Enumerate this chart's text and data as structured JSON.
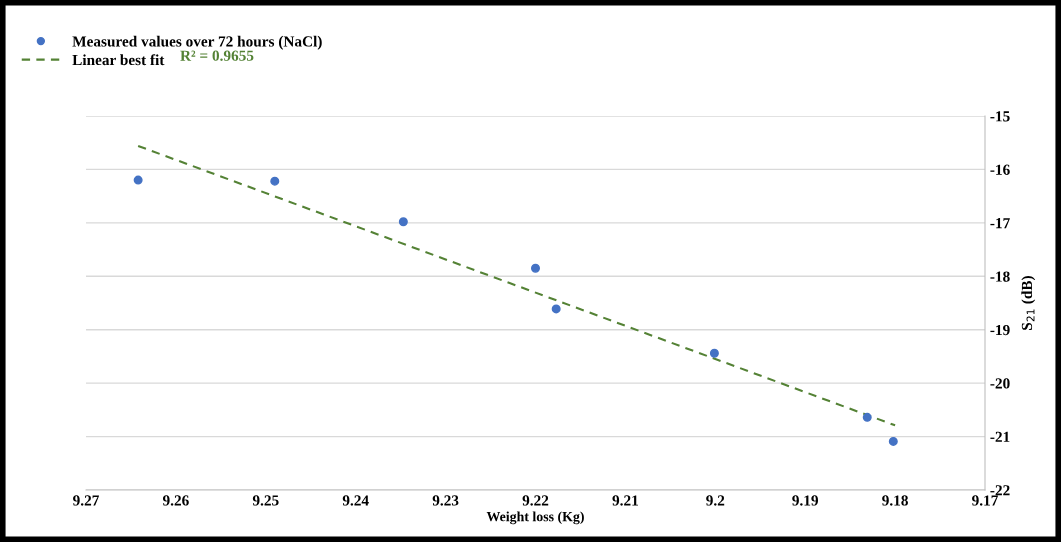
{
  "chart_data": {
    "type": "scatter",
    "xlabel": "Weight loss (Kg)",
    "ylabel": "S$_{21}$ (dB)",
    "series": [
      {
        "name": "Measured values over 72 hours (NaCl)",
        "color": "#4472c4",
        "marker": "circle",
        "x": [
          9.2642,
          9.249,
          9.2347,
          9.22,
          9.2177,
          9.2001,
          9.1831,
          9.1802
        ],
        "values": [
          -16.2,
          -16.22,
          -16.98,
          -17.85,
          -18.61,
          -19.44,
          -20.64,
          -21.09
        ]
      },
      {
        "name": "Linear best fit",
        "type": "line",
        "color": "#548235",
        "line_style": "dashed",
        "marker": "none",
        "x": [
          9.2642,
          9.18
        ],
        "values": [
          -15.56,
          -20.79
        ]
      }
    ],
    "annotations": [
      "R² = 0.9655"
    ],
    "xlim": [
      9.27,
      9.17
    ],
    "xticks": [
      9.27,
      9.26,
      9.25,
      9.24,
      9.23,
      9.22,
      9.21,
      9.2,
      9.19,
      9.18,
      9.17
    ],
    "ylim": [
      -22,
      -15
    ],
    "yticks": [
      -22,
      -21,
      -20,
      -19,
      -18,
      -17,
      -16,
      -15
    ],
    "grid": "y",
    "legend": "top left"
  }
}
